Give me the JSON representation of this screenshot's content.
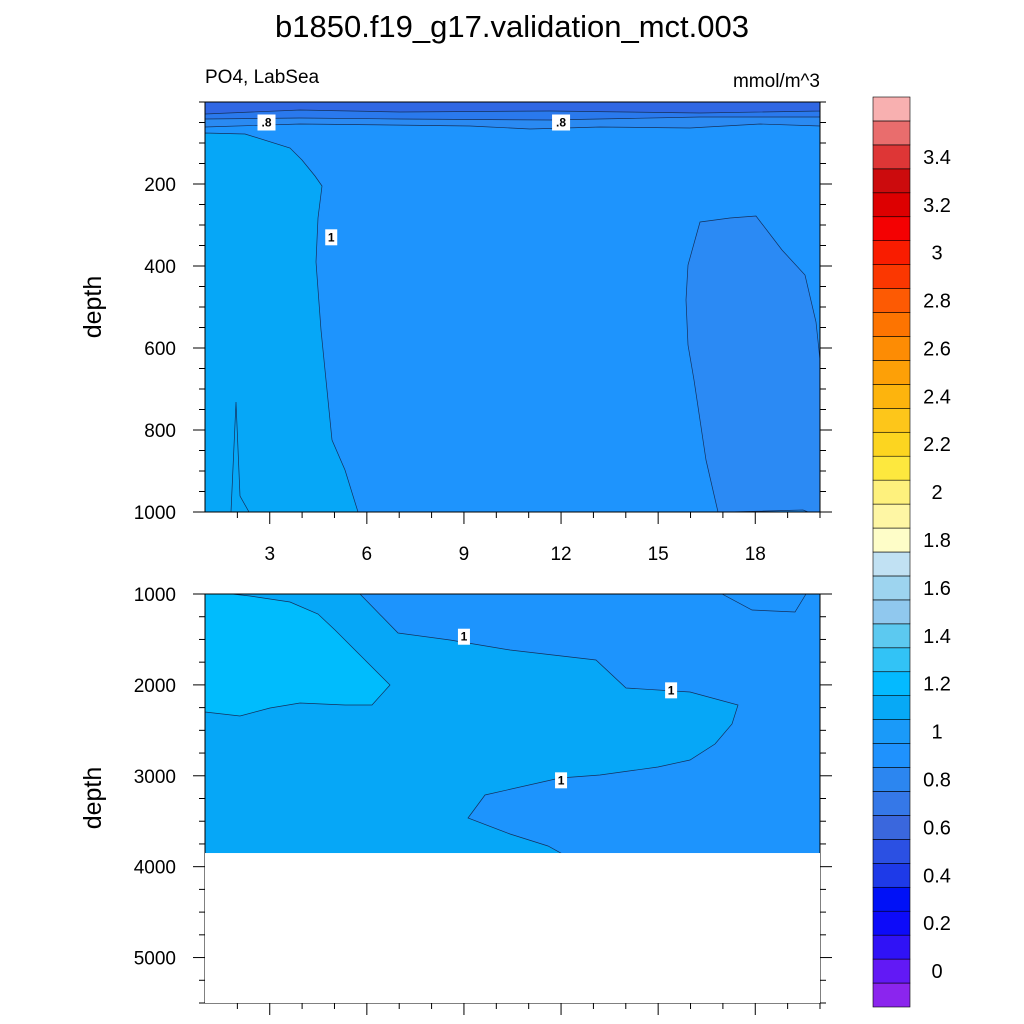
{
  "chart_data": [
    {
      "type": "contour",
      "title": "b1850.f19_g17.validation_mct.003",
      "subtitle_left": "PO4, LabSea",
      "subtitle_right": "mmol/m^3",
      "ylabel": "depth",
      "xlim": [
        1,
        20
      ],
      "ylim": [
        0,
        1000
      ],
      "y_reversed": true,
      "xticks": [
        3,
        6,
        9,
        12,
        15,
        18
      ],
      "xticklabels": [
        "3",
        "6",
        "9",
        "12",
        "15",
        "18"
      ],
      "yticks": [
        200,
        400,
        600,
        800,
        1000
      ],
      "yticklabels": [
        "200",
        "400",
        "600",
        "800",
        "1000"
      ],
      "regions": [
        {
          "name": "surface",
          "value_range": [
            0.6,
            0.7
          ],
          "color": "#3067e4"
        },
        {
          "name": "near-surface",
          "value_range": [
            0.7,
            0.8
          ],
          "color": "#2a79ed"
        },
        {
          "name": "upper-band",
          "value_range": [
            0.8,
            0.9
          ],
          "color": "#2a8af2"
        },
        {
          "name": "interior",
          "value_range": [
            0.9,
            1.0
          ],
          "color": "#1e94fd"
        },
        {
          "name": "west-column",
          "value_range": [
            1.0,
            1.1
          ],
          "color": "#06a7f7"
        },
        {
          "name": "east-pocket",
          "value_range": [
            0.8,
            0.9
          ],
          "color": "#2b8af4"
        }
      ],
      "contour_labels": [
        {
          "text": ".8",
          "x": 2.9,
          "y": 50
        },
        {
          "text": ".8",
          "x": 12.0,
          "y": 50
        },
        {
          "text": "1",
          "x": 4.9,
          "y": 330
        }
      ]
    },
    {
      "type": "contour",
      "ylabel": "depth",
      "xlim": [
        1,
        20
      ],
      "ylim": [
        1000,
        5500
      ],
      "y_reversed": true,
      "yticks": [
        1000,
        2000,
        3000,
        4000,
        5000
      ],
      "yticklabels": [
        "1000",
        "2000",
        "3000",
        "4000",
        "5000"
      ],
      "data_bottom_depth": 3850,
      "regions": [
        {
          "name": "background",
          "value_range": [
            0.9,
            1.0
          ],
          "color": "#1d94fd"
        },
        {
          "name": "tongue",
          "value_range": [
            1.0,
            1.1
          ],
          "color": "#06a7f7"
        },
        {
          "name": "west-core",
          "value_range": [
            1.1,
            1.2
          ],
          "color": "#00bcfd"
        }
      ],
      "contour_labels": [
        {
          "text": "1",
          "x": 9.0,
          "y": 1470
        },
        {
          "text": "1",
          "x": 15.4,
          "y": 2060
        },
        {
          "text": "1",
          "x": 12.0,
          "y": 3050
        }
      ]
    }
  ],
  "colorbar": {
    "levels": [
      -0.1,
      0,
      0.1,
      0.2,
      0.3,
      0.4,
      0.5,
      0.6,
      0.7,
      0.8,
      0.9,
      1.0,
      1.1,
      1.2,
      1.3,
      1.4,
      1.5,
      1.6,
      1.7,
      1.8,
      1.9,
      2.0,
      2.1,
      2.2,
      2.3,
      2.4,
      2.5,
      2.6,
      2.7,
      2.8,
      2.9,
      3.0,
      3.1,
      3.2,
      3.3,
      3.4,
      3.5,
      3.6
    ],
    "colors": [
      "#8b25ee",
      "#6219f5",
      "#3012f6",
      "#0d0bf9",
      "#0011f7",
      "#1e3ae8",
      "#2b50e3",
      "#3a67dd",
      "#3578e8",
      "#2c86f0",
      "#1f92fd",
      "#1a9af9",
      "#07a9f6",
      "#04baff",
      "#32c3f6",
      "#5cc9f0",
      "#90c8ee",
      "#9dd4ef",
      "#c1e1f3",
      "#fefdc8",
      "#fef6a4",
      "#fef17d",
      "#fde83e",
      "#fcd520",
      "#fdc61a",
      "#fdb40d",
      "#fda007",
      "#fd8c04",
      "#fd7401",
      "#fd5a03",
      "#fb3701",
      "#f91c00",
      "#f40102",
      "#dd0001",
      "#cc0b0d",
      "#de3636",
      "#e96d6d",
      "#f8b0b0"
    ],
    "tick_values": [
      0,
      0.2,
      0.4,
      0.6,
      0.8,
      1,
      1.2,
      1.4,
      1.6,
      1.8,
      2,
      2.2,
      2.4,
      2.6,
      2.8,
      3,
      3.2,
      3.4
    ],
    "tick_labels": [
      "0",
      "0.2",
      "0.4",
      "0.6",
      "0.8",
      "1",
      "1.2",
      "1.4",
      "1.6",
      "1.8",
      "2",
      "2.2",
      "2.4",
      "2.6",
      "2.8",
      "3",
      "3.2",
      "3.4"
    ]
  }
}
